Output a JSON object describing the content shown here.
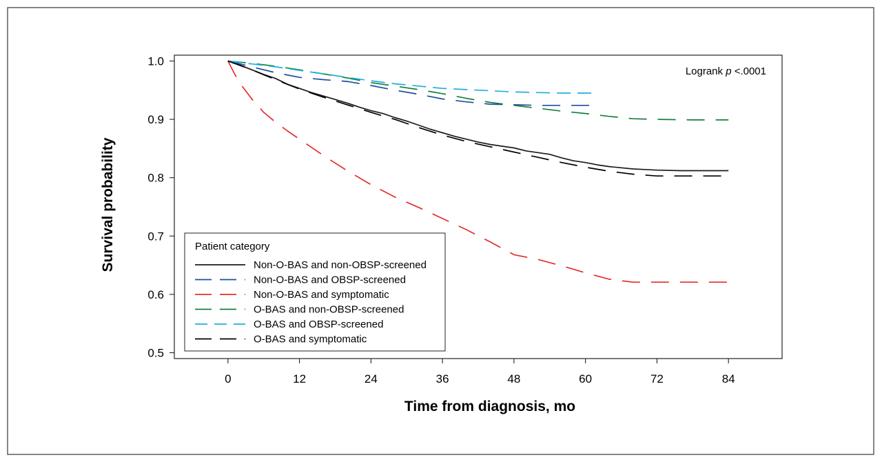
{
  "chart_data": {
    "type": "line",
    "title": "",
    "xlabel": "Time from diagnosis, mo",
    "ylabel": "Survival probability",
    "xlim": [
      -9,
      93
    ],
    "ylim": [
      0.49,
      1.01
    ],
    "xticks": [
      0,
      12,
      24,
      36,
      48,
      60,
      72,
      84
    ],
    "yticks": [
      0.5,
      0.6,
      0.7,
      0.8,
      0.9,
      1.0
    ],
    "xtick_labels": [
      "0",
      "12",
      "24",
      "36",
      "48",
      "60",
      "72",
      "84"
    ],
    "ytick_labels": [
      "0.5",
      "0.6",
      "0.7",
      "0.8",
      "0.9",
      "1.0"
    ],
    "grid": false,
    "legend_title": "Patient category",
    "legend_placement": "bottom-left",
    "annotation": {
      "prefix": "Logrank ",
      "italic": "p",
      "suffix": " <.0001",
      "position": "top-right"
    },
    "series": [
      {
        "name": "Non-O-BAS and non-OBSP-screened",
        "color": "#1a1a1a",
        "style": "solid",
        "x": [
          0,
          2,
          4,
          6,
          8,
          10,
          12,
          14,
          16,
          18,
          20,
          22,
          24,
          26,
          28,
          30,
          32,
          34,
          36,
          38,
          40,
          42,
          44,
          46,
          48,
          50,
          52,
          54,
          56,
          58,
          60,
          62,
          64,
          66,
          68,
          70,
          72,
          76,
          80,
          84
        ],
        "y": [
          1.0,
          0.993,
          0.985,
          0.977,
          0.97,
          0.96,
          0.953,
          0.946,
          0.94,
          0.934,
          0.928,
          0.921,
          0.915,
          0.91,
          0.903,
          0.897,
          0.89,
          0.883,
          0.877,
          0.871,
          0.866,
          0.861,
          0.857,
          0.854,
          0.851,
          0.846,
          0.843,
          0.84,
          0.834,
          0.829,
          0.826,
          0.822,
          0.819,
          0.817,
          0.815,
          0.814,
          0.813,
          0.812,
          0.812,
          0.812
        ]
      },
      {
        "name": "Non-O-BAS and OBSP-screened",
        "color": "#1f4e9c",
        "style": "long-dash",
        "x": [
          0,
          4,
          8,
          12,
          16,
          20,
          24,
          28,
          32,
          36,
          40,
          44,
          48,
          52,
          56,
          60,
          61
        ],
        "y": [
          1.0,
          0.99,
          0.98,
          0.972,
          0.968,
          0.965,
          0.958,
          0.95,
          0.943,
          0.935,
          0.93,
          0.926,
          0.925,
          0.924,
          0.924,
          0.924,
          0.924
        ]
      },
      {
        "name": "Non-O-BAS and symptomatic",
        "color": "#e42d2d",
        "style": "long-dash",
        "x": [
          0,
          1,
          2,
          4,
          6,
          8,
          10,
          12,
          16,
          20,
          24,
          28,
          32,
          36,
          40,
          44,
          48,
          52,
          56,
          60,
          64,
          68,
          72,
          76,
          80,
          84
        ],
        "y": [
          1.0,
          0.98,
          0.962,
          0.935,
          0.912,
          0.895,
          0.88,
          0.866,
          0.838,
          0.812,
          0.788,
          0.767,
          0.749,
          0.73,
          0.711,
          0.69,
          0.668,
          0.66,
          0.649,
          0.637,
          0.626,
          0.621,
          0.621,
          0.621,
          0.621,
          0.621
        ]
      },
      {
        "name": "O-BAS and non-OBSP-screened",
        "color": "#15803a",
        "style": "long-dash",
        "x": [
          0,
          4,
          8,
          12,
          16,
          20,
          24,
          28,
          32,
          36,
          40,
          44,
          48,
          52,
          56,
          60,
          64,
          68,
          72,
          78,
          84
        ],
        "y": [
          1.0,
          0.996,
          0.991,
          0.985,
          0.978,
          0.971,
          0.963,
          0.957,
          0.951,
          0.944,
          0.936,
          0.929,
          0.924,
          0.919,
          0.914,
          0.91,
          0.905,
          0.901,
          0.9,
          0.899,
          0.899
        ]
      },
      {
        "name": "O-BAS and OBSP-screened",
        "color": "#1faee0",
        "style": "dash",
        "x": [
          0,
          4,
          8,
          12,
          16,
          20,
          24,
          28,
          32,
          36,
          40,
          44,
          48,
          52,
          56,
          60,
          61
        ],
        "y": [
          1.0,
          0.995,
          0.99,
          0.984,
          0.978,
          0.972,
          0.966,
          0.961,
          0.957,
          0.953,
          0.951,
          0.949,
          0.947,
          0.946,
          0.945,
          0.945,
          0.945
        ]
      },
      {
        "name": "O-BAS and symptomatic",
        "color": "#000000",
        "style": "long-dash",
        "x": [
          0,
          4,
          8,
          12,
          16,
          20,
          24,
          28,
          32,
          36,
          40,
          44,
          48,
          52,
          56,
          60,
          64,
          68,
          72,
          76,
          80,
          84
        ],
        "y": [
          1.0,
          0.985,
          0.968,
          0.952,
          0.938,
          0.925,
          0.912,
          0.9,
          0.886,
          0.873,
          0.862,
          0.853,
          0.844,
          0.835,
          0.826,
          0.818,
          0.811,
          0.806,
          0.803,
          0.803,
          0.803,
          0.803
        ]
      }
    ]
  }
}
